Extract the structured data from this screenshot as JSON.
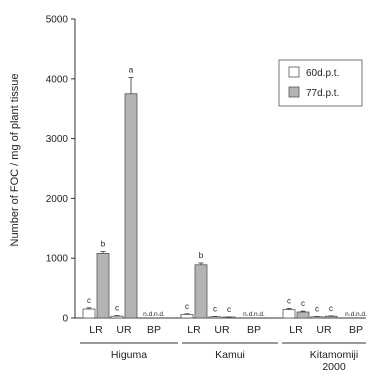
{
  "chart_data": {
    "type": "bar",
    "ylabel": "Number of FOC / mg of plant tissue",
    "ylim": [
      0,
      5000
    ],
    "yticks": [
      "0",
      "1000",
      "2000",
      "3000",
      "4000",
      "5000"
    ],
    "groups": [
      {
        "name": "Higuma",
        "categories": [
          "LR",
          "UR",
          "BP"
        ]
      },
      {
        "name": "Kamui",
        "categories": [
          "LR",
          "UR",
          "BP"
        ]
      },
      {
        "name": "Kitamomiji\n2000",
        "name_lines": [
          "Kitamomiji",
          "2000"
        ],
        "categories": [
          "LR",
          "UR",
          "BP"
        ]
      }
    ],
    "categories": [
      "LR",
      "UR",
      "BP",
      "LR",
      "UR",
      "BP",
      "LR",
      "UR",
      "BP"
    ],
    "series": [
      {
        "name": "60d.p.t.",
        "color": "#ffffff",
        "values": [
          150,
          30,
          0,
          60,
          20,
          0,
          140,
          20,
          0
        ],
        "errors": [
          20,
          10,
          0,
          10,
          5,
          0,
          20,
          5,
          0
        ],
        "labels": [
          "c",
          "c",
          "n.d.",
          "c",
          "c",
          "n.d.",
          "c",
          "c",
          "n.d."
        ]
      },
      {
        "name": "77d.p.t.",
        "color": "#b3b3b3",
        "values": [
          1080,
          3750,
          0,
          890,
          10,
          0,
          100,
          30,
          0
        ],
        "errors": [
          30,
          270,
          0,
          30,
          5,
          0,
          15,
          5,
          0
        ],
        "labels": [
          "b",
          "a",
          "n.d.",
          "b",
          "c",
          "n.d.",
          "c",
          "c",
          "n.d."
        ]
      }
    ],
    "legend": {
      "position": "top-right"
    },
    "grid": false
  }
}
